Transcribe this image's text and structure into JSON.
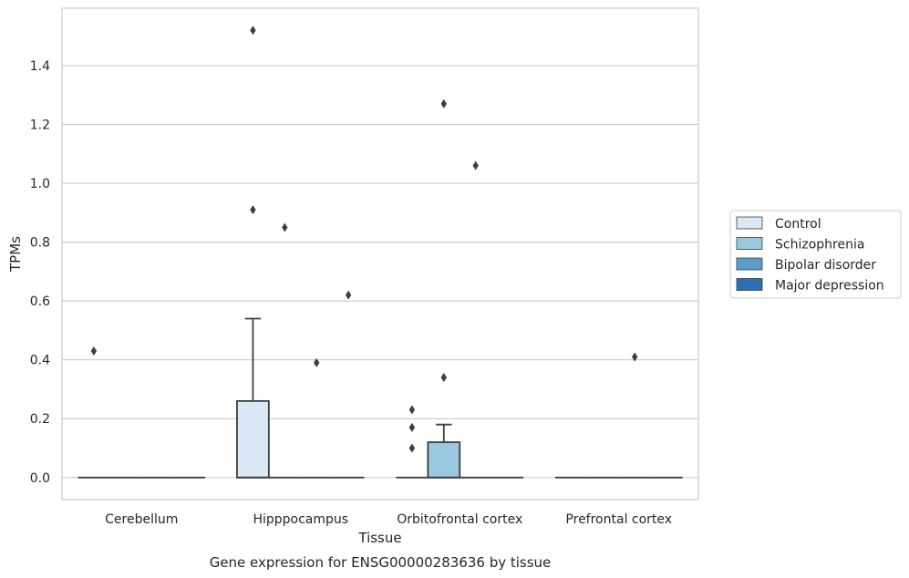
{
  "chart_data": {
    "type": "box",
    "title": "",
    "caption": "Gene expression for ENSG00000283636 by tissue",
    "xlabel": "Tissue",
    "ylabel": "TPMs",
    "ylim": [
      -0.075,
      1.595
    ],
    "yticks": [
      "0.0",
      "0.2",
      "0.4",
      "0.6",
      "0.8",
      "1.0",
      "1.2",
      "1.4"
    ],
    "yticks_values": [
      0.0,
      0.2,
      0.4,
      0.6,
      0.8,
      1.0,
      1.2,
      1.4
    ],
    "grid": "horizontal",
    "legend_position": "right",
    "categories": [
      "Cerebellum",
      "Hipppocampus",
      "Orbitofrontal cortex",
      "Prefrontal cortex"
    ],
    "series": [
      {
        "name": "Control",
        "color": "#dbe9f6",
        "boxes": [
          {
            "q1": 0,
            "median": 0,
            "q3": 0,
            "whisker_low": 0,
            "whisker_high": 0,
            "outliers": [
              0.43
            ]
          },
          {
            "q1": 0,
            "median": 0,
            "q3": 0.26,
            "whisker_low": 0,
            "whisker_high": 0.54,
            "outliers": [
              1.52,
              0.91
            ]
          },
          {
            "q1": 0,
            "median": 0,
            "q3": 0,
            "whisker_low": 0,
            "whisker_high": 0,
            "outliers": [
              0.23,
              0.17,
              0.1
            ]
          },
          {
            "q1": 0,
            "median": 0,
            "q3": 0,
            "whisker_low": 0,
            "whisker_high": 0,
            "outliers": []
          }
        ]
      },
      {
        "name": "Schizophrenia",
        "color": "#9ac8e0",
        "boxes": [
          {
            "q1": 0,
            "median": 0,
            "q3": 0,
            "whisker_low": 0,
            "whisker_high": 0,
            "outliers": []
          },
          {
            "q1": 0,
            "median": 0,
            "q3": 0,
            "whisker_low": 0,
            "whisker_high": 0,
            "outliers": [
              0.85
            ]
          },
          {
            "q1": 0,
            "median": 0,
            "q3": 0.12,
            "whisker_low": 0,
            "whisker_high": 0.18,
            "outliers": [
              1.27,
              0.34
            ]
          },
          {
            "q1": 0,
            "median": 0,
            "q3": 0,
            "whisker_low": 0,
            "whisker_high": 0,
            "outliers": []
          }
        ]
      },
      {
        "name": "Bipolar disorder",
        "color": "#5a9ec9",
        "boxes": [
          {
            "q1": 0,
            "median": 0,
            "q3": 0,
            "whisker_low": 0,
            "whisker_high": 0,
            "outliers": []
          },
          {
            "q1": 0,
            "median": 0,
            "q3": 0,
            "whisker_low": 0,
            "whisker_high": 0,
            "outliers": [
              0.39
            ]
          },
          {
            "q1": 0,
            "median": 0,
            "q3": 0,
            "whisker_low": 0,
            "whisker_high": 0,
            "outliers": [
              1.06
            ]
          },
          {
            "q1": 0,
            "median": 0,
            "q3": 0,
            "whisker_low": 0,
            "whisker_high": 0,
            "outliers": [
              0.41
            ]
          }
        ]
      },
      {
        "name": "Major depression",
        "color": "#2d6fb1",
        "boxes": [
          {
            "q1": 0,
            "median": 0,
            "q3": 0,
            "whisker_low": 0,
            "whisker_high": 0,
            "outliers": []
          },
          {
            "q1": 0,
            "median": 0,
            "q3": 0,
            "whisker_low": 0,
            "whisker_high": 0,
            "outliers": [
              0.62
            ]
          },
          {
            "q1": 0,
            "median": 0,
            "q3": 0,
            "whisker_low": 0,
            "whisker_high": 0,
            "outliers": []
          },
          {
            "q1": 0,
            "median": 0,
            "q3": 0,
            "whisker_low": 0,
            "whisker_high": 0,
            "outliers": []
          }
        ]
      }
    ]
  }
}
